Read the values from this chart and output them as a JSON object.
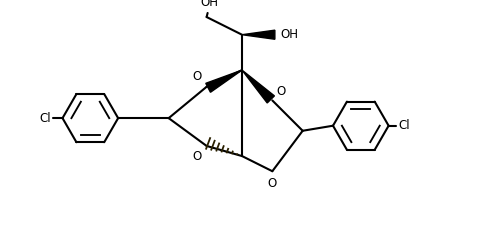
{
  "bg_color": "#ffffff",
  "line_color": "#000000",
  "line_width": 1.5,
  "font_size": 8.5,
  "figsize": [
    4.84,
    2.25
  ],
  "dpi": 100,
  "xlim": [
    0,
    9.5
  ],
  "ylim": [
    0,
    4.2
  ]
}
